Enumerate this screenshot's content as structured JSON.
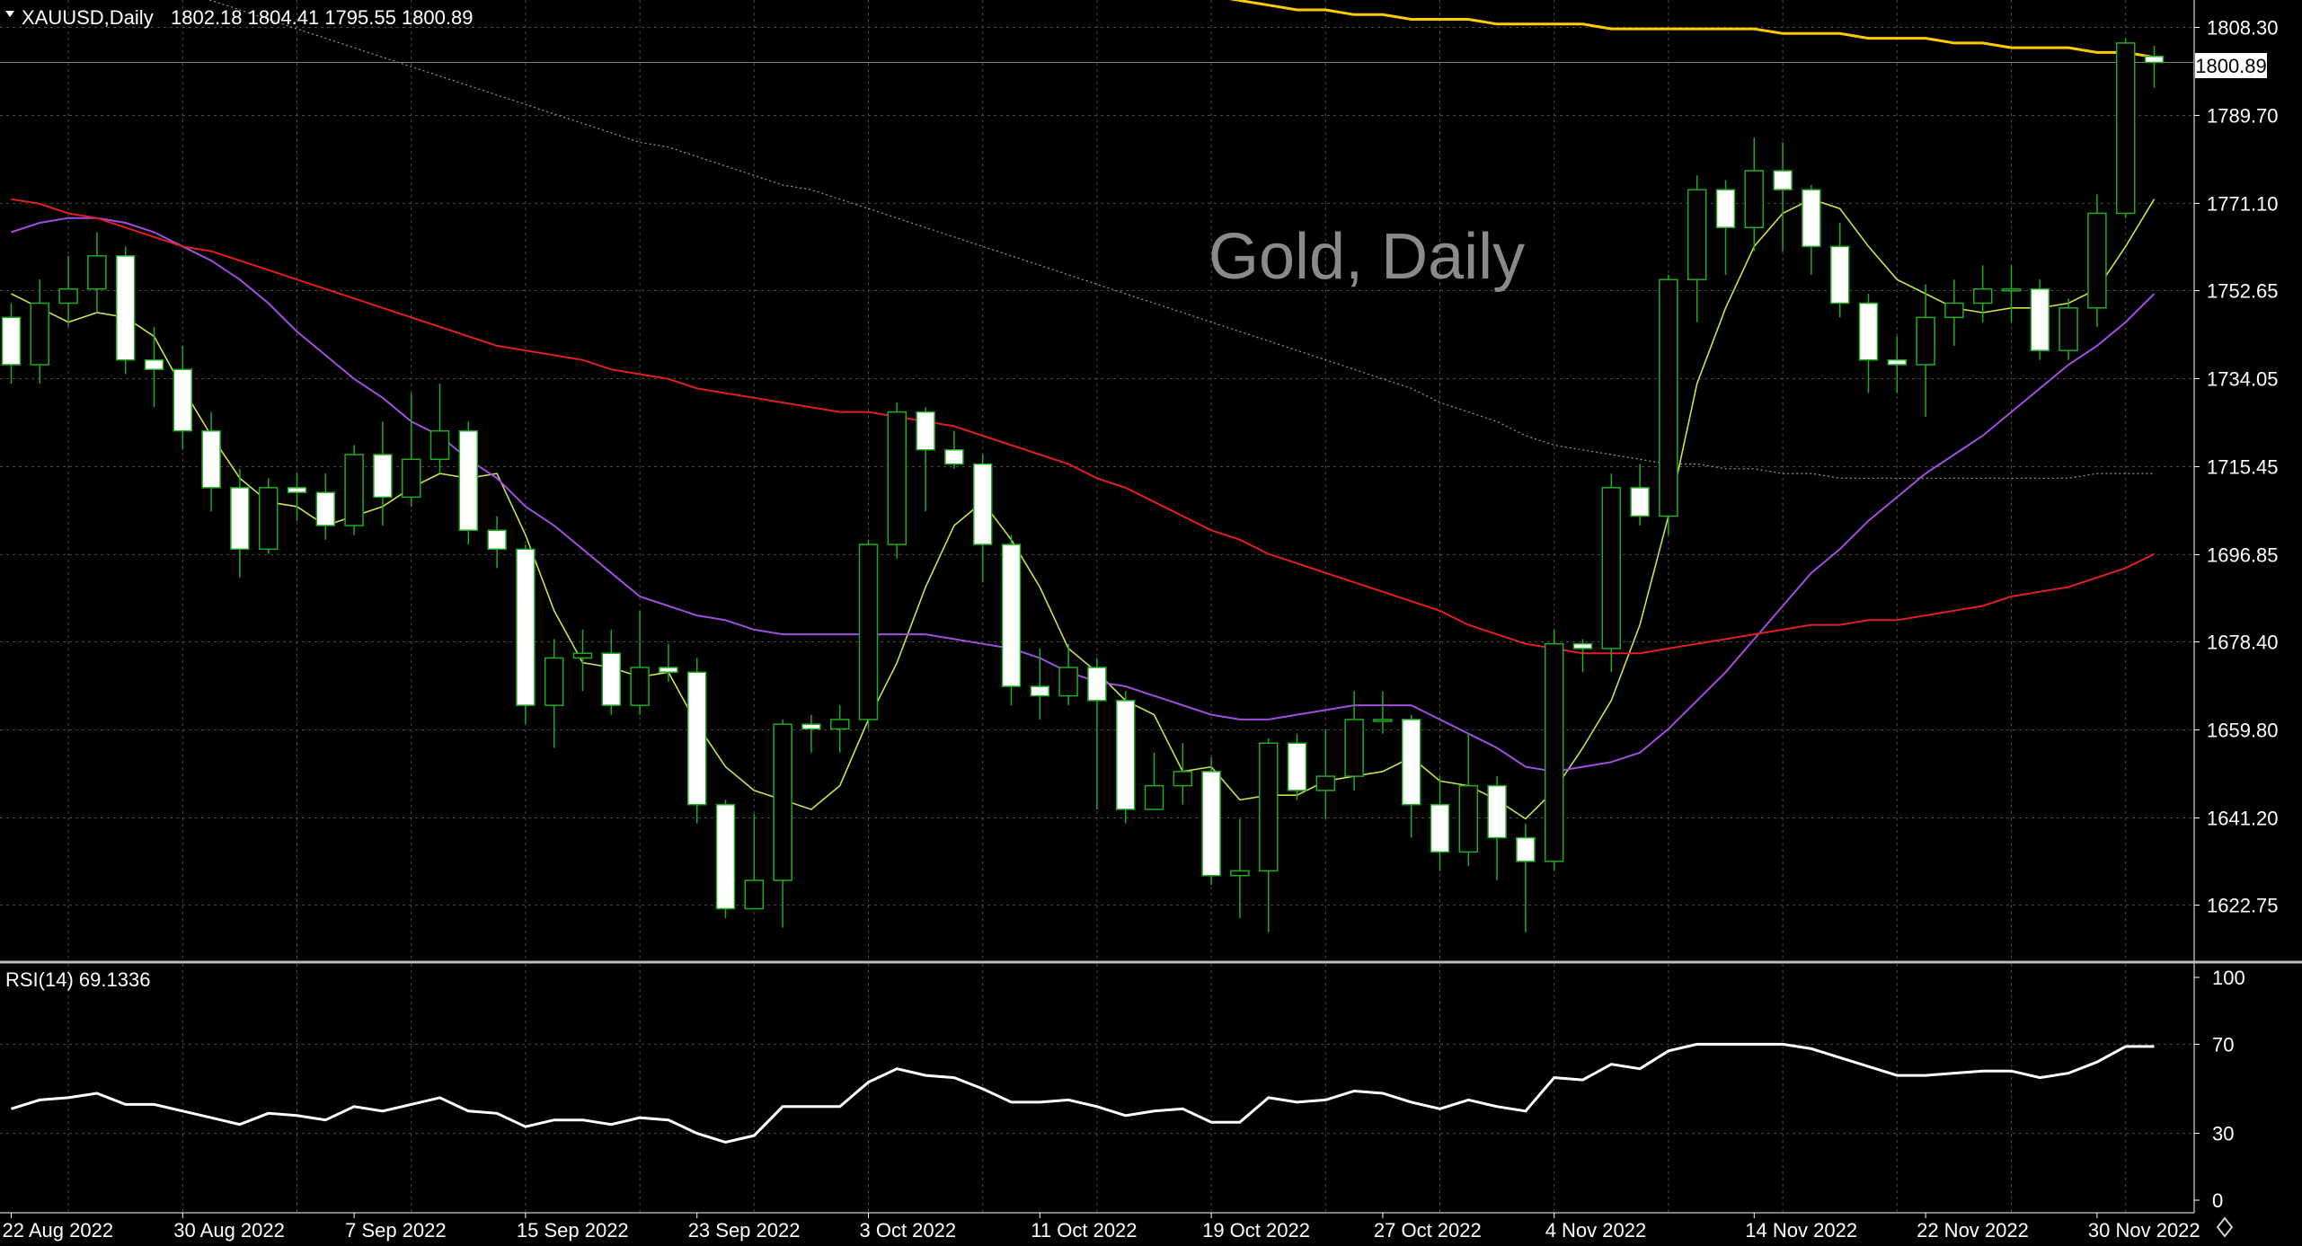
{
  "header": {
    "symbol": "XAUUSD,Daily",
    "ohlc": "1802.18 1804.41 1795.55 1800.89"
  },
  "watermark": "Gold, Daily",
  "current_price_label": "1800.89",
  "rsi_label": "RSI(14) 69.1336",
  "colors": {
    "background": "#000000",
    "grid": "#4a4a4a",
    "bull_body": "#000000",
    "bear_body": "#ffffff",
    "wick": "#22aa22",
    "ma5": "#c8e44a",
    "ma20": "#a04ee0",
    "ma50": "#e02020",
    "ma100": "#9a9a9a",
    "ma200": "#ffcc00",
    "rsi": "#ffffff"
  },
  "chart_data": [
    {
      "type": "candlestick",
      "ylim": [
        1608,
        1815
      ],
      "y_ticks": [
        "1808.30",
        "1789.70",
        "1771.10",
        "1752.65",
        "1734.05",
        "1715.45",
        "1696.85",
        "1678.40",
        "1659.80",
        "1641.20",
        "1622.75"
      ],
      "x_labels": [
        "22 Aug 2022",
        "30 Aug 2022",
        "7 Sep 2022",
        "15 Sep 2022",
        "23 Sep 2022",
        "3 Oct 2022",
        "11 Oct 2022",
        "19 Oct 2022",
        "27 Oct 2022",
        "4 Nov 2022",
        "14 Nov 2022",
        "22 Nov 2022",
        "30 Nov 2022"
      ],
      "x_label_bars": [
        0,
        6,
        12,
        18,
        24,
        30,
        36,
        42,
        48,
        54,
        61,
        67,
        73
      ],
      "candles": [
        [
          1747,
          1737,
          1750,
          1733
        ],
        [
          1737,
          1750,
          1755,
          1733
        ],
        [
          1750,
          1753,
          1760,
          1745
        ],
        [
          1753,
          1760,
          1765,
          1748
        ],
        [
          1760,
          1738,
          1762,
          1735
        ],
        [
          1738,
          1736,
          1745,
          1728
        ],
        [
          1736,
          1723,
          1741,
          1719
        ],
        [
          1723,
          1711,
          1727,
          1706
        ],
        [
          1711,
          1698,
          1715,
          1692
        ],
        [
          1698,
          1711,
          1713,
          1697
        ],
        [
          1711,
          1710,
          1714,
          1704
        ],
        [
          1710,
          1703,
          1714,
          1700
        ],
        [
          1703,
          1718,
          1720,
          1701
        ],
        [
          1718,
          1709,
          1725,
          1703
        ],
        [
          1709,
          1717,
          1731,
          1707
        ],
        [
          1717,
          1723,
          1733,
          1714
        ],
        [
          1723,
          1702,
          1725,
          1699
        ],
        [
          1702,
          1698,
          1705,
          1694
        ],
        [
          1698,
          1665,
          1699,
          1661
        ],
        [
          1665,
          1675,
          1679,
          1656
        ],
        [
          1675,
          1676,
          1681,
          1668
        ],
        [
          1676,
          1665,
          1681,
          1663
        ],
        [
          1665,
          1673,
          1685,
          1663
        ],
        [
          1673,
          1672,
          1678,
          1670
        ],
        [
          1672,
          1644,
          1675,
          1640
        ],
        [
          1644,
          1622,
          1645,
          1620
        ],
        [
          1622,
          1628,
          1642,
          1622
        ],
        [
          1628,
          1661,
          1662,
          1618
        ],
        [
          1661,
          1660,
          1663,
          1655
        ],
        [
          1660,
          1662,
          1665,
          1655
        ],
        [
          1662,
          1699,
          1700,
          1660
        ],
        [
          1699,
          1727,
          1729,
          1696
        ],
        [
          1727,
          1719,
          1728,
          1706
        ],
        [
          1719,
          1716,
          1723,
          1715
        ],
        [
          1716,
          1699,
          1718,
          1691
        ],
        [
          1699,
          1669,
          1701,
          1665
        ],
        [
          1669,
          1667,
          1677,
          1662
        ],
        [
          1667,
          1673,
          1678,
          1665
        ],
        [
          1673,
          1666,
          1675,
          1643
        ],
        [
          1666,
          1643,
          1668,
          1640
        ],
        [
          1643,
          1648,
          1655,
          1645
        ],
        [
          1648,
          1651,
          1657,
          1644
        ],
        [
          1651,
          1629,
          1654,
          1627
        ],
        [
          1629,
          1630,
          1641,
          1620
        ],
        [
          1630,
          1657,
          1658,
          1617
        ],
        [
          1657,
          1647,
          1659,
          1645
        ],
        [
          1647,
          1650,
          1660,
          1641
        ],
        [
          1650,
          1662,
          1668,
          1647
        ],
        [
          1662,
          1662,
          1668,
          1659
        ],
        [
          1662,
          1644,
          1663,
          1637
        ],
        [
          1644,
          1634,
          1650,
          1630
        ],
        [
          1634,
          1648,
          1659,
          1631
        ],
        [
          1648,
          1637,
          1650,
          1628
        ],
        [
          1637,
          1632,
          1640,
          1617
        ],
        [
          1632,
          1678,
          1681,
          1630
        ],
        [
          1678,
          1677,
          1679,
          1672
        ],
        [
          1677,
          1711,
          1714,
          1672
        ],
        [
          1711,
          1705,
          1716,
          1703
        ],
        [
          1705,
          1755,
          1756,
          1701
        ],
        [
          1755,
          1774,
          1777,
          1746
        ],
        [
          1774,
          1766,
          1776,
          1756
        ],
        [
          1766,
          1778,
          1785,
          1761
        ],
        [
          1778,
          1774,
          1784,
          1761
        ],
        [
          1774,
          1762,
          1775,
          1756
        ],
        [
          1762,
          1750,
          1767,
          1747
        ],
        [
          1750,
          1738,
          1752,
          1731
        ],
        [
          1738,
          1737,
          1743,
          1731
        ],
        [
          1737,
          1747,
          1754,
          1726
        ],
        [
          1747,
          1750,
          1755,
          1741
        ],
        [
          1750,
          1753,
          1758,
          1746
        ],
        [
          1753,
          1753,
          1758,
          1746
        ],
        [
          1753,
          1740,
          1755,
          1738
        ],
        [
          1740,
          1749,
          1751,
          1738
        ],
        [
          1749,
          1769,
          1773,
          1745
        ],
        [
          1769,
          1805,
          1806,
          1768
        ],
        [
          1802.18,
          1800.89,
          1804.41,
          1795.55
        ]
      ],
      "moving_averages": [
        {
          "role": "ma5",
          "values": [
            1752,
            1749,
            1746,
            1748,
            1747,
            1743,
            1732,
            1722,
            1713,
            1708,
            1707,
            1703,
            1705,
            1707,
            1711,
            1714,
            1713,
            1714,
            1701,
            1685,
            1674,
            1673,
            1671,
            1672,
            1661,
            1652,
            1647,
            1645,
            1643,
            1648,
            1662,
            1674,
            1690,
            1703,
            1708,
            1700,
            1690,
            1677,
            1672,
            1666,
            1663,
            1651,
            1652,
            1645,
            1646,
            1646,
            1649,
            1650,
            1651,
            1654,
            1649,
            1648,
            1645,
            1641,
            1647,
            1656,
            1666,
            1682,
            1705,
            1733,
            1749,
            1762,
            1769,
            1772,
            1770,
            1762,
            1755,
            1752,
            1749,
            1748,
            1749,
            1749,
            1750,
            1753,
            1762,
            1772
          ]
        },
        {
          "role": "ma20",
          "values": [
            1765,
            1767,
            1768,
            1768,
            1767,
            1765,
            1762,
            1759,
            1755,
            1750,
            1744,
            1739,
            1734,
            1730,
            1725,
            1722,
            1717,
            1713,
            1707,
            1703,
            1698,
            1693,
            1688,
            1686,
            1684,
            1683,
            1681,
            1680,
            1680,
            1680,
            1680,
            1680,
            1680,
            1679,
            1678,
            1677,
            1675,
            1672,
            1670,
            1669,
            1667,
            1665,
            1663,
            1662,
            1662,
            1663,
            1664,
            1665,
            1665,
            1665,
            1662,
            1659,
            1656,
            1652,
            1651,
            1652,
            1653,
            1655,
            1660,
            1666,
            1672,
            1679,
            1686,
            1693,
            1698,
            1704,
            1709,
            1714,
            1718,
            1722,
            1727,
            1732,
            1737,
            1741,
            1746,
            1752
          ]
        },
        {
          "role": "ma50",
          "values": [
            1772,
            1771,
            1769,
            1768,
            1766,
            1764,
            1762,
            1761,
            1759,
            1757,
            1755,
            1753,
            1751,
            1749,
            1747,
            1745,
            1743,
            1741,
            1740,
            1739,
            1738,
            1736,
            1735,
            1734,
            1732,
            1731,
            1730,
            1729,
            1728,
            1727,
            1727,
            1726,
            1725,
            1724,
            1722,
            1720,
            1718,
            1716,
            1713,
            1711,
            1708,
            1705,
            1702,
            1700,
            1697,
            1695,
            1693,
            1691,
            1689,
            1687,
            1685,
            1682,
            1680,
            1678,
            1677,
            1676,
            1676,
            1676,
            1677,
            1678,
            1679,
            1680,
            1681,
            1682,
            1682,
            1683,
            1683,
            1684,
            1685,
            1686,
            1688,
            1689,
            1690,
            1692,
            1694,
            1697
          ]
        },
        {
          "role": "ma100",
          "values": [
            1826,
            1825,
            1823,
            1822,
            1820,
            1818,
            1816,
            1814,
            1812,
            1810,
            1808,
            1806,
            1804,
            1802,
            1800,
            1798,
            1796,
            1794,
            1792,
            1790,
            1788,
            1786,
            1784,
            1783,
            1781,
            1779,
            1777,
            1775,
            1774,
            1772,
            1770,
            1768,
            1766,
            1764,
            1762,
            1760,
            1758,
            1756,
            1754,
            1752,
            1750,
            1748,
            1746,
            1744,
            1742,
            1740,
            1738,
            1736,
            1734,
            1732,
            1729,
            1727,
            1725,
            1722,
            1720,
            1719,
            1718,
            1717,
            1716,
            1716,
            1715,
            1715,
            1714,
            1714,
            1713,
            1713,
            1713,
            1713,
            1713,
            1713,
            1713,
            1713,
            1713,
            1714,
            1714,
            1714
          ]
        },
        {
          "role": "ma200",
          "values": [
            null,
            null,
            null,
            null,
            null,
            null,
            null,
            null,
            null,
            null,
            null,
            null,
            null,
            null,
            null,
            null,
            null,
            null,
            null,
            null,
            null,
            null,
            null,
            null,
            null,
            null,
            null,
            null,
            null,
            null,
            null,
            null,
            null,
            null,
            null,
            null,
            null,
            null,
            null,
            null,
            null,
            null,
            1815,
            1814,
            1813,
            1812,
            1812,
            1811,
            1811,
            1810,
            1810,
            1810,
            1809,
            1809,
            1809,
            1809,
            1808,
            1808,
            1808,
            1808,
            1808,
            1808,
            1807,
            1807,
            1807,
            1806,
            1806,
            1806,
            1805,
            1805,
            1804,
            1804,
            1804,
            1803,
            1803,
            1802
          ]
        }
      ]
    },
    {
      "type": "line",
      "name": "RSI(14) 69.1336",
      "ylim": [
        0,
        100
      ],
      "y_ticks": [
        100,
        70,
        30,
        0
      ],
      "values": [
        41,
        45,
        46,
        48,
        43,
        43,
        40,
        37,
        34,
        39,
        38,
        36,
        42,
        40,
        43,
        46,
        40,
        39,
        33,
        36,
        36,
        34,
        37,
        36,
        30,
        26,
        29,
        42,
        42,
        42,
        53,
        59,
        56,
        55,
        50,
        44,
        44,
        45,
        42,
        38,
        40,
        41,
        35,
        35,
        46,
        44,
        45,
        49,
        48,
        44,
        41,
        45,
        42,
        40,
        55,
        54,
        61,
        59,
        67,
        70,
        70,
        70,
        70,
        68,
        64,
        60,
        56,
        56,
        57,
        58,
        58,
        55,
        57,
        62,
        69,
        69
      ]
    }
  ]
}
